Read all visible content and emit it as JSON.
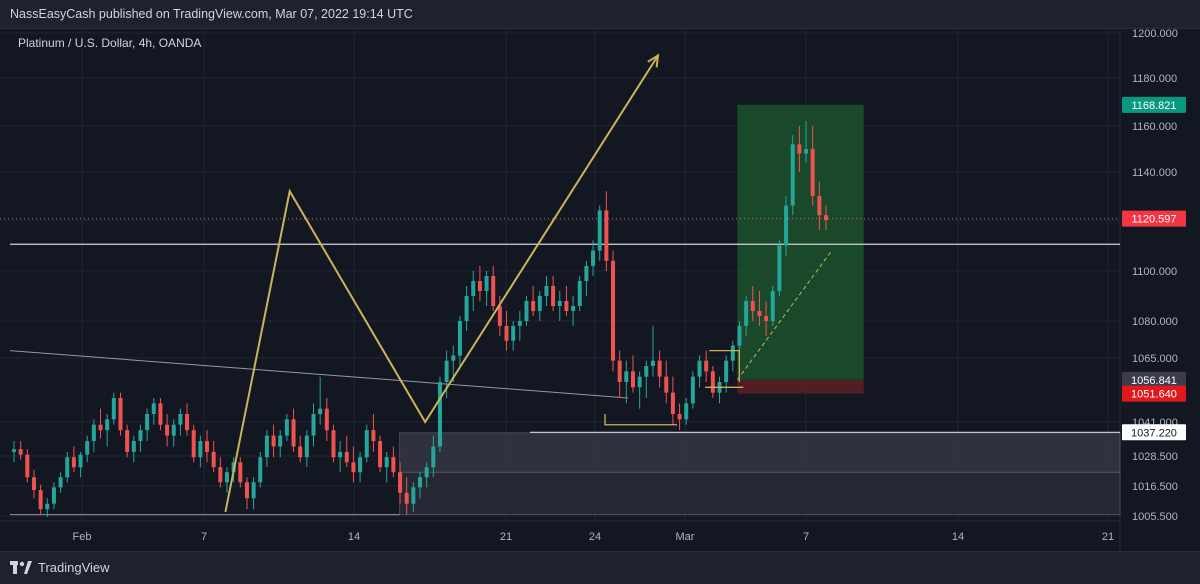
{
  "header": {
    "published": "NassEasyCash published on TradingView.com, Mar 07, 2022 19:14 UTC"
  },
  "symbol": {
    "title": "Platinum / U.S. Dollar, 4h, OANDA"
  },
  "footer": {
    "brand": "TradingView"
  },
  "colors": {
    "background": "#131722",
    "up": "#26a69a",
    "down": "#ef5350",
    "pattern": "#c9b458",
    "target_zone": "#1e5a2e",
    "stop_zone": "#5a1e24",
    "grid": "#1f2433"
  },
  "chart_data": {
    "type": "candlestick",
    "symbol": "Platinum / U.S. Dollar, 4h, OANDA",
    "ylim": [
      1000,
      1205
    ],
    "y_ticks": [
      {
        "value": 1200,
        "label": "1200.000"
      },
      {
        "value": 1180,
        "label": "1180.000"
      },
      {
        "value": 1160,
        "label": "1160.000"
      },
      {
        "value": 1140,
        "label": "1140.000"
      },
      {
        "value": 1120,
        "label": "1120.000"
      },
      {
        "value": 1100,
        "label": "1100.000"
      },
      {
        "value": 1080,
        "label": "1080.000"
      },
      {
        "value": 1065,
        "label": "1065.000"
      },
      {
        "value": 1041,
        "label": "1041.000"
      },
      {
        "value": 1028.5,
        "label": "1028.500"
      },
      {
        "value": 1016.5,
        "label": "1016.500"
      },
      {
        "value": 1005.5,
        "label": "1005.500"
      }
    ],
    "x_range": [
      "2022-01-29",
      "2022-03-21"
    ],
    "x_ticks": [
      {
        "date": "2022-02-01",
        "label": "Feb"
      },
      {
        "date": "2022-02-07",
        "label": "7"
      },
      {
        "date": "2022-02-14",
        "label": "14"
      },
      {
        "date": "2022-02-21",
        "label": "21"
      },
      {
        "date": "2022-02-24",
        "label": "24"
      },
      {
        "date": "2022-03-01",
        "label": "Mar"
      },
      {
        "date": "2022-03-07",
        "label": "7"
      },
      {
        "date": "2022-03-14",
        "label": "14"
      },
      {
        "date": "2022-03-21",
        "label": "21"
      }
    ],
    "price_tags": [
      {
        "value": 1168.821,
        "label": "1168.821",
        "bg": "#089981",
        "fg": "#ffffff"
      },
      {
        "value": 1120.597,
        "label": "1120.597",
        "bg": "#f23645",
        "fg": "#ffffff"
      },
      {
        "value": 1056.841,
        "label": "1056.841",
        "bg": "#3a3e4a",
        "fg": "#ffffff"
      },
      {
        "value": 1051.64,
        "label": "1051.640",
        "bg": "#e0191e",
        "fg": "#ffffff"
      },
      {
        "value": 1037.22,
        "label": "1037.220",
        "bg": "#ffffff",
        "fg": "#131722"
      }
    ],
    "levels": [
      {
        "value": 1110.5,
        "from": "2022-01-29",
        "to": "2022-03-21"
      },
      {
        "value": 1037.2,
        "from": "2022-02-21",
        "to": "2022-03-21"
      }
    ],
    "zones": [
      {
        "kind": "demand",
        "from": "2022-02-15",
        "to": "2022-03-21",
        "top": 1037,
        "bottom": 1022
      },
      {
        "kind": "demand",
        "from": "2022-02-15",
        "to": "2022-03-21",
        "top": 1022,
        "bottom": 1006
      }
    ],
    "trade": {
      "from": "2022-03-03",
      "to": "2022-03-08",
      "entry": 1056.841,
      "target": 1168.821,
      "stop": 1051.64
    },
    "trendline": [
      {
        "date": "2022-01-29",
        "value": 1068
      },
      {
        "date": "2022-02-25",
        "value": 1050
      }
    ],
    "pattern_path": [
      {
        "date": "2022-02-08",
        "value": 1007
      },
      {
        "date": "2022-02-11",
        "value": 1132
      },
      {
        "date": "2022-02-18",
        "value": 1041
      },
      {
        "date": "2022-02-29",
        "value": 1190
      }
    ],
    "ohlc": [
      [
        1030,
        1034,
        1026,
        1031
      ],
      [
        1031,
        1034,
        1027,
        1029
      ],
      [
        1029,
        1031,
        1018,
        1020
      ],
      [
        1020,
        1023,
        1012,
        1015
      ],
      [
        1015,
        1017,
        1006,
        1008
      ],
      [
        1008,
        1012,
        1005,
        1010
      ],
      [
        1010,
        1018,
        1008,
        1016
      ],
      [
        1016,
        1022,
        1014,
        1020
      ],
      [
        1020,
        1030,
        1018,
        1028
      ],
      [
        1028,
        1032,
        1022,
        1024
      ],
      [
        1024,
        1030,
        1020,
        1029
      ],
      [
        1029,
        1036,
        1026,
        1034
      ],
      [
        1034,
        1042,
        1030,
        1040
      ],
      [
        1040,
        1046,
        1035,
        1038
      ],
      [
        1038,
        1044,
        1032,
        1042
      ],
      [
        1042,
        1052,
        1040,
        1050
      ],
      [
        1050,
        1052,
        1036,
        1038
      ],
      [
        1038,
        1040,
        1028,
        1030
      ],
      [
        1030,
        1036,
        1026,
        1034
      ],
      [
        1034,
        1040,
        1030,
        1038
      ],
      [
        1038,
        1046,
        1034,
        1044
      ],
      [
        1044,
        1050,
        1040,
        1048
      ],
      [
        1048,
        1050,
        1038,
        1040
      ],
      [
        1040,
        1044,
        1032,
        1036
      ],
      [
        1036,
        1042,
        1032,
        1040
      ],
      [
        1040,
        1046,
        1036,
        1044
      ],
      [
        1044,
        1048,
        1036,
        1038
      ],
      [
        1038,
        1040,
        1026,
        1028
      ],
      [
        1028,
        1036,
        1024,
        1034
      ],
      [
        1034,
        1038,
        1026,
        1030
      ],
      [
        1030,
        1034,
        1022,
        1024
      ],
      [
        1024,
        1028,
        1016,
        1018
      ],
      [
        1018,
        1024,
        1014,
        1022
      ],
      [
        1022,
        1028,
        1018,
        1026
      ],
      [
        1026,
        1028,
        1016,
        1018
      ],
      [
        1018,
        1020,
        1008,
        1012
      ],
      [
        1012,
        1020,
        1008,
        1018
      ],
      [
        1018,
        1030,
        1016,
        1028
      ],
      [
        1028,
        1038,
        1024,
        1036
      ],
      [
        1036,
        1040,
        1028,
        1032
      ],
      [
        1032,
        1038,
        1028,
        1036
      ],
      [
        1036,
        1044,
        1034,
        1042
      ],
      [
        1042,
        1046,
        1030,
        1032
      ],
      [
        1032,
        1036,
        1026,
        1028
      ],
      [
        1028,
        1038,
        1024,
        1036
      ],
      [
        1036,
        1048,
        1032,
        1044
      ],
      [
        1044,
        1058,
        1040,
        1046
      ],
      [
        1046,
        1050,
        1034,
        1038
      ],
      [
        1038,
        1040,
        1026,
        1028
      ],
      [
        1028,
        1034,
        1022,
        1030
      ],
      [
        1030,
        1036,
        1024,
        1026
      ],
      [
        1026,
        1032,
        1018,
        1022
      ],
      [
        1022,
        1030,
        1018,
        1028
      ],
      [
        1028,
        1040,
        1026,
        1038
      ],
      [
        1038,
        1044,
        1030,
        1034
      ],
      [
        1034,
        1036,
        1022,
        1024
      ],
      [
        1024,
        1030,
        1018,
        1028
      ],
      [
        1028,
        1032,
        1020,
        1022
      ],
      [
        1022,
        1026,
        1010,
        1014
      ],
      [
        1014,
        1020,
        1006,
        1010
      ],
      [
        1010,
        1018,
        1007,
        1016
      ],
      [
        1016,
        1022,
        1012,
        1020
      ],
      [
        1020,
        1026,
        1016,
        1024
      ],
      [
        1024,
        1036,
        1020,
        1032
      ],
      [
        1032,
        1058,
        1030,
        1056
      ],
      [
        1056,
        1068,
        1050,
        1064
      ],
      [
        1064,
        1070,
        1056,
        1066
      ],
      [
        1066,
        1082,
        1062,
        1080
      ],
      [
        1080,
        1094,
        1076,
        1090
      ],
      [
        1090,
        1100,
        1084,
        1096
      ],
      [
        1096,
        1102,
        1088,
        1092
      ],
      [
        1092,
        1100,
        1086,
        1098
      ],
      [
        1098,
        1102,
        1084,
        1086
      ],
      [
        1086,
        1090,
        1074,
        1078
      ],
      [
        1078,
        1084,
        1068,
        1072
      ],
      [
        1072,
        1080,
        1068,
        1078
      ],
      [
        1078,
        1084,
        1072,
        1080
      ],
      [
        1080,
        1090,
        1078,
        1088
      ],
      [
        1088,
        1094,
        1082,
        1084
      ],
      [
        1084,
        1092,
        1080,
        1090
      ],
      [
        1090,
        1098,
        1086,
        1094
      ],
      [
        1094,
        1098,
        1084,
        1086
      ],
      [
        1086,
        1092,
        1080,
        1088
      ],
      [
        1088,
        1094,
        1082,
        1084
      ],
      [
        1084,
        1090,
        1078,
        1086
      ],
      [
        1086,
        1098,
        1084,
        1096
      ],
      [
        1096,
        1104,
        1090,
        1102
      ],
      [
        1102,
        1112,
        1098,
        1108
      ],
      [
        1108,
        1126,
        1104,
        1124
      ],
      [
        1124,
        1132,
        1100,
        1104
      ],
      [
        1104,
        1108,
        1060,
        1064
      ],
      [
        1064,
        1068,
        1050,
        1056
      ],
      [
        1056,
        1064,
        1048,
        1060
      ],
      [
        1060,
        1066,
        1052,
        1054
      ],
      [
        1054,
        1060,
        1046,
        1058
      ],
      [
        1058,
        1064,
        1050,
        1062
      ],
      [
        1062,
        1078,
        1058,
        1064
      ],
      [
        1064,
        1068,
        1054,
        1058
      ],
      [
        1058,
        1064,
        1048,
        1052
      ],
      [
        1052,
        1058,
        1040,
        1044
      ],
      [
        1044,
        1048,
        1038,
        1042
      ],
      [
        1042,
        1050,
        1040,
        1048
      ],
      [
        1048,
        1060,
        1046,
        1058
      ],
      [
        1058,
        1066,
        1054,
        1064
      ],
      [
        1064,
        1068,
        1056,
        1060
      ],
      [
        1060,
        1062,
        1050,
        1052
      ],
      [
        1052,
        1058,
        1048,
        1056
      ],
      [
        1056,
        1066,
        1052,
        1064
      ],
      [
        1064,
        1072,
        1060,
        1070
      ],
      [
        1070,
        1080,
        1066,
        1078
      ],
      [
        1078,
        1090,
        1074,
        1088
      ],
      [
        1088,
        1094,
        1080,
        1084
      ],
      [
        1084,
        1092,
        1078,
        1082
      ],
      [
        1082,
        1088,
        1074,
        1080
      ],
      [
        1080,
        1094,
        1078,
        1092
      ],
      [
        1092,
        1112,
        1090,
        1110
      ],
      [
        1110,
        1130,
        1106,
        1126
      ],
      [
        1126,
        1156,
        1122,
        1152
      ],
      [
        1152,
        1160,
        1140,
        1148
      ],
      [
        1148,
        1162,
        1144,
        1150
      ],
      [
        1150,
        1160,
        1126,
        1130
      ],
      [
        1130,
        1136,
        1116,
        1122
      ],
      [
        1122,
        1126,
        1116,
        1120
      ]
    ]
  }
}
